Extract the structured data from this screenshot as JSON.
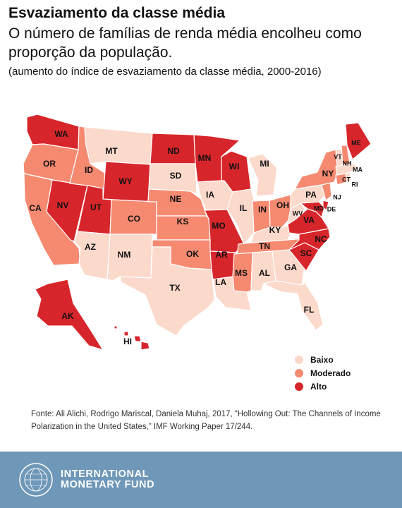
{
  "header": {
    "title": "Esvaziamento da classe média",
    "subtitle": "O número de famílias de renda média encolheu como proporção da população.",
    "note": "(aumento do índice de esvaziamento da classe média, 2000-2016)"
  },
  "colors": {
    "Baixo": "#fbd9cb",
    "Moderado": "#f58a71",
    "Alto": "#d7262b"
  },
  "legend": [
    {
      "key": "Baixo",
      "label": "Baixo"
    },
    {
      "key": "Moderado",
      "label": "Moderado"
    },
    {
      "key": "Alto",
      "label": "Alto"
    }
  ],
  "chart_data": {
    "type": "choropleth",
    "categories": [
      "Baixo",
      "Moderado",
      "Alto"
    ],
    "states": {
      "WA": "Alto",
      "OR": "Moderado",
      "CA": "Moderado",
      "NV": "Alto",
      "ID": "Moderado",
      "MT": "Baixo",
      "WY": "Alto",
      "UT": "Alto",
      "AZ": "Baixo",
      "CO": "Moderado",
      "NM": "Baixo",
      "ND": "Alto",
      "SD": "Baixo",
      "NE": "Moderado",
      "KS": "Moderado",
      "OK": "Moderado",
      "TX": "Baixo",
      "MN": "Alto",
      "IA": "Baixo",
      "MO": "Alto",
      "AR": "Alto",
      "LA": "Baixo",
      "WI": "Alto",
      "IL": "Baixo",
      "MI": "Baixo",
      "IN": "Moderado",
      "OH": "Moderado",
      "KY": "Baixo",
      "TN": "Moderado",
      "MS": "Moderado",
      "AL": "Baixo",
      "GA": "Baixo",
      "FL": "Baixo",
      "SC": "Alto",
      "NC": "Alto",
      "VA": "Alto",
      "WV": "Baixo",
      "MD": "Alto",
      "DE": "Alto",
      "PA": "Baixo",
      "NJ": "Moderado",
      "NY": "Moderado",
      "CT": "Moderado",
      "RI": "Baixo",
      "MA": "Baixo",
      "VT": "Baixo",
      "NH": "Moderado",
      "ME": "Alto",
      "AK": "Alto",
      "HI": "Alto"
    }
  },
  "source": "Fonte: Ali Alichi, Rodrigo Mariscal, Daniela Muhaj, 2017, “Hollowing Out: The Channels of Income Polarization in the United States,” IMF Working Paper 17/244.",
  "footer": {
    "org_name": "INTERNATIONAL\nMONETARY FUND"
  }
}
